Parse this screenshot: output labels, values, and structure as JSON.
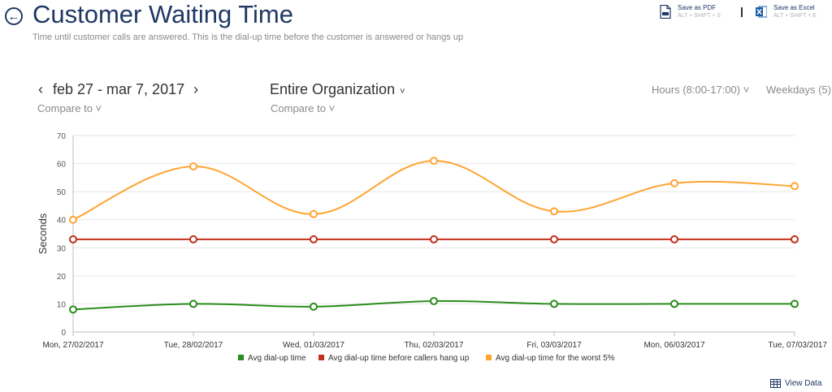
{
  "header": {
    "title": "Customer Waiting Time",
    "subtitle": "Time until customer calls are answered. This is the dial-up time before the customer is answered or hangs up"
  },
  "export": {
    "pdf_label": "Save as PDF",
    "pdf_shortcut": "ALT + SHIFT + S",
    "excel_label": "Save as Excel",
    "excel_shortcut": "ALT + SHIFT + E"
  },
  "filters": {
    "date_range": "feb 27 - mar 7, 2017",
    "prev_arrow": "‹",
    "next_arrow": "›",
    "compare_to": "Compare to ˅",
    "organization": "Entire Organization",
    "org_chevron": "˅",
    "hours": "Hours (8:00-17:00) ˅",
    "weekdays": "Weekdays (5)"
  },
  "view_data_label": "View Data",
  "colors": {
    "title": "#1f3864",
    "green": "#2a8c1c",
    "red": "#c0301c",
    "orange": "#ffa431"
  },
  "chart_data": {
    "type": "line",
    "ylabel": "Seconds",
    "ylim": [
      0,
      70
    ],
    "yticks": [
      0,
      10,
      20,
      30,
      40,
      50,
      60,
      70
    ],
    "categories": [
      "Mon, 27/02/2017",
      "Tue, 28/02/2017",
      "Wed, 01/03/2017",
      "Thu, 02/03/2017",
      "Fri, 03/03/2017",
      "Mon, 06/03/2017",
      "Tue, 07/03/2017"
    ],
    "grid": true,
    "legend_position": "bottom",
    "series": [
      {
        "name": "Avg dial-up time",
        "color": "#2a8c1c",
        "values": [
          8,
          10,
          9,
          11,
          10,
          10,
          10
        ]
      },
      {
        "name": "Avg dial-up time before callers hang up",
        "color": "#c0301c",
        "values": [
          33,
          33,
          33,
          33,
          33,
          33,
          33
        ]
      },
      {
        "name": "Avg dial-up time for the worst 5%",
        "color": "#ffa431",
        "values": [
          40,
          59,
          42,
          61,
          43,
          53,
          52
        ]
      }
    ]
  }
}
